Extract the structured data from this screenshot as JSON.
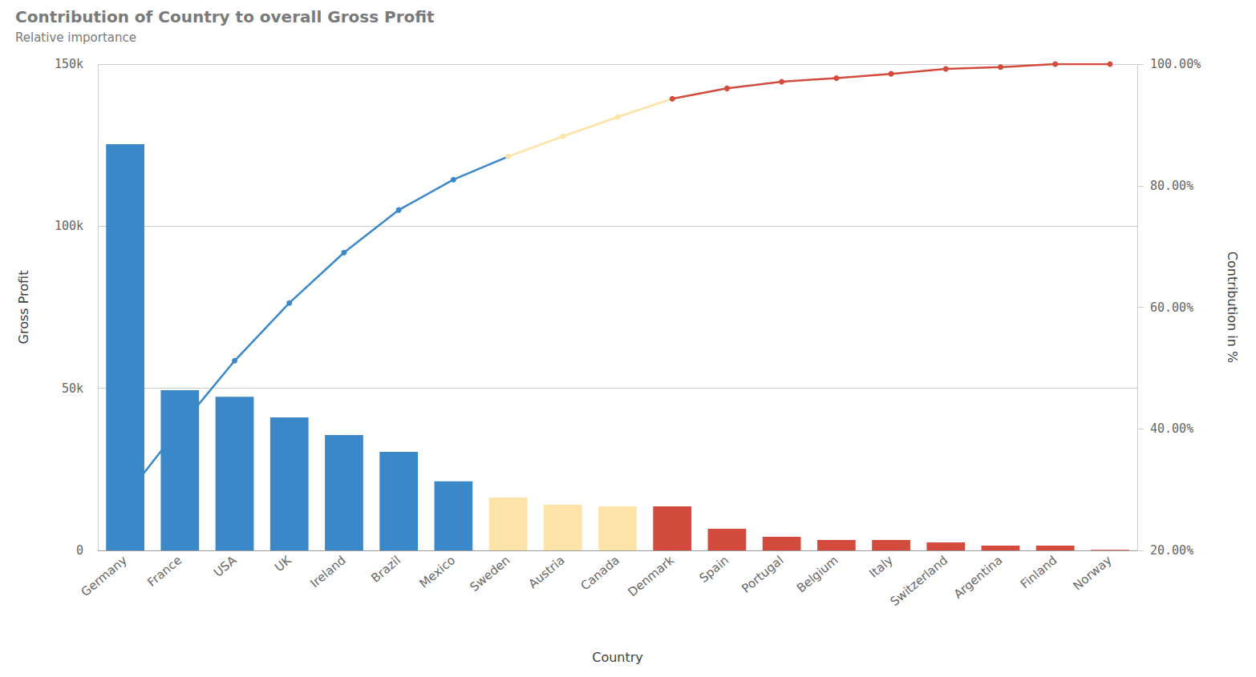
{
  "chart_data": {
    "type": "bar",
    "title": "Contribution of Country to overall Gross Profit",
    "subtitle": "Relative importance",
    "xlabel": "Country",
    "ylabel": "Gross Profit",
    "y2label": "Contribution in %",
    "categories": [
      "Germany",
      "France",
      "USA",
      "UK",
      "Ireland",
      "Brazil",
      "Mexico",
      "Sweden",
      "Austria",
      "Canada",
      "Denmark",
      "Spain",
      "Portugal",
      "Belgium",
      "Italy",
      "Switzerland",
      "Argentina",
      "Finland",
      "Norway"
    ],
    "series": [
      {
        "type": "bar",
        "values": [
          125300,
          49400,
          47400,
          41000,
          35600,
          30400,
          21300,
          16300,
          14100,
          13600,
          13600,
          6700,
          4200,
          3200,
          3200,
          2500,
          1500,
          1500,
          200
        ],
        "colors": [
          "#3a88c8",
          "#3a88c8",
          "#3a88c8",
          "#3a88c8",
          "#3a88c8",
          "#3a88c8",
          "#3a88c8",
          "#fee3a8",
          "#fee3a8",
          "#fee3a8",
          "#d24b3d",
          "#d24b3d",
          "#d24b3d",
          "#d24b3d",
          "#d24b3d",
          "#d24b3d",
          "#d24b3d",
          "#d24b3d",
          "#d24b3d"
        ]
      },
      {
        "type": "line",
        "axis": "y2",
        "marker": "circle",
        "values": [
          28.8,
          40.3,
          51.2,
          60.7,
          69.0,
          76.0,
          81.0,
          84.8,
          88.1,
          91.3,
          94.3,
          96.0,
          97.1,
          97.7,
          98.4,
          99.2,
          99.5,
          100,
          100
        ],
        "colors": [
          "#3a88c8",
          "#3a88c8",
          "#3a88c8",
          "#3a88c8",
          "#3a88c8",
          "#3a88c8",
          "#3a88c8",
          "#fee3a8",
          "#fee3a8",
          "#fee3a8",
          "#d24b3d",
          "#d24b3d",
          "#d24b3d",
          "#d24b3d",
          "#d24b3d",
          "#d24b3d",
          "#d24b3d",
          "#d24b3d",
          "#d24b3d"
        ]
      }
    ],
    "ylim": [
      0,
      150000
    ],
    "yticks": [
      {
        "value": 0,
        "label": "0"
      },
      {
        "value": 50000,
        "label": "50k"
      },
      {
        "value": 100000,
        "label": "100k"
      },
      {
        "value": 150000,
        "label": "150k"
      }
    ],
    "y2lim": [
      20,
      100
    ],
    "y2ticks": [
      {
        "value": 20,
        "label": "20.00%"
      },
      {
        "value": 40,
        "label": "40.00%"
      },
      {
        "value": 60,
        "label": "60.00%"
      },
      {
        "value": 80,
        "label": "80.00%"
      },
      {
        "value": 100,
        "label": "100.00%"
      }
    ],
    "grid": true
  }
}
